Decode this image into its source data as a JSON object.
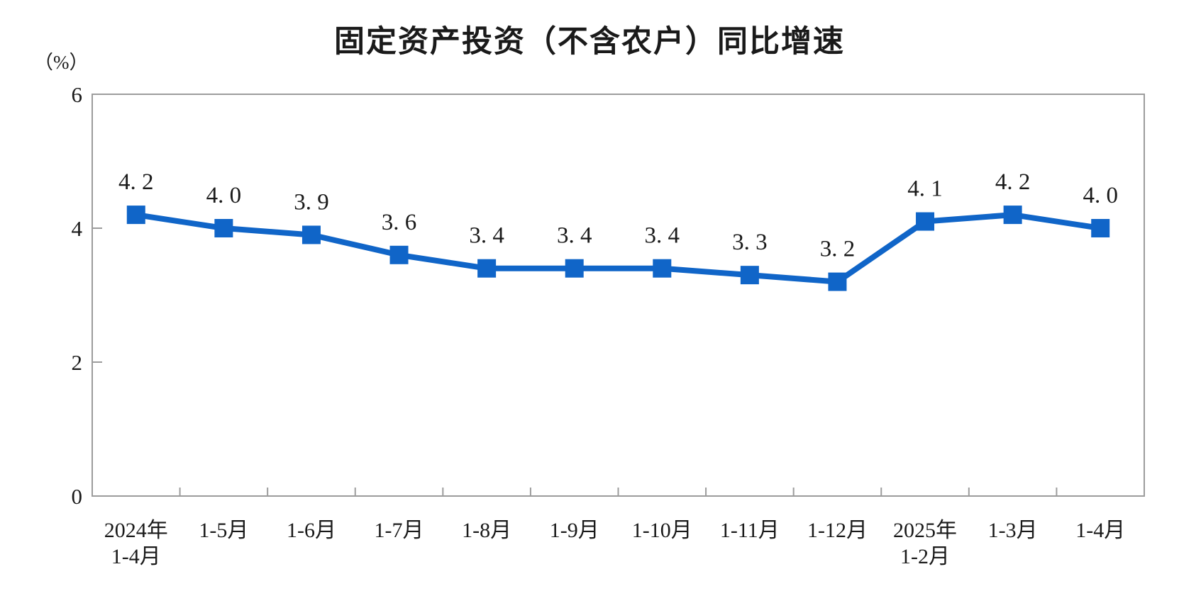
{
  "chart_data": {
    "type": "line",
    "title": "固定资产投资（不含农户）同比增速",
    "ylabel": "（%）",
    "xlabel": "",
    "categories": [
      "2024年\n1-4月",
      "1-5月",
      "1-6月",
      "1-7月",
      "1-8月",
      "1-9月",
      "1-10月",
      "1-11月",
      "1-12月",
      "2025年\n1-2月",
      "1-3月",
      "1-4月"
    ],
    "values": [
      4.2,
      4.0,
      3.9,
      3.6,
      3.4,
      3.4,
      3.4,
      3.3,
      3.2,
      4.1,
      4.2,
      4.0
    ],
    "point_labels": [
      "4. 2",
      "4. 0",
      "3. 9",
      "3. 6",
      "3. 4",
      "3. 4",
      "3. 4",
      "3. 3",
      "3. 2",
      "4. 1",
      "4. 2",
      "4. 0"
    ],
    "ylim": [
      0,
      6
    ],
    "yticks": [
      0,
      2,
      4,
      6
    ],
    "grid": false,
    "legend": "none",
    "marker": "square",
    "colors": {
      "line": "#1065C8",
      "axis": "#9C9C9C",
      "text": "#1A1A1A"
    }
  }
}
